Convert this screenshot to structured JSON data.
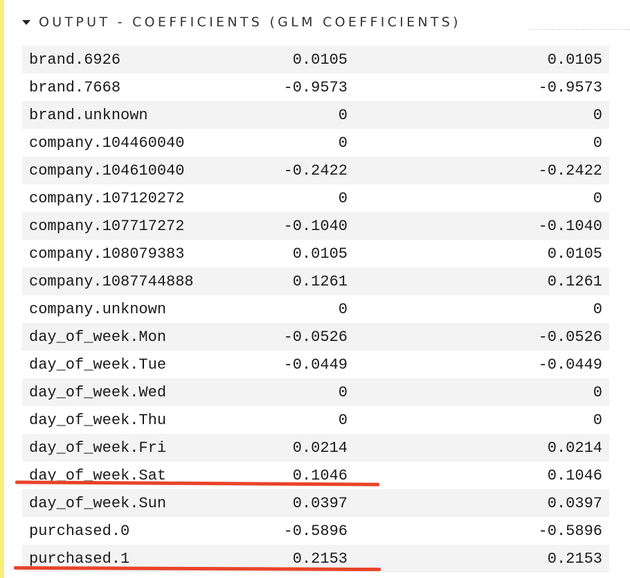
{
  "section": {
    "title": "OUTPUT - COEFFICIENTS (GLM COEFFICIENTS)",
    "caret_icon": "caret-down-icon"
  },
  "coefficients": [
    {
      "name": "brand.6926",
      "coefficient": "0.0105",
      "std_coefficient": "0.0105"
    },
    {
      "name": "brand.7668",
      "coefficient": "-0.9573",
      "std_coefficient": "-0.9573"
    },
    {
      "name": "brand.unknown",
      "coefficient": "0",
      "std_coefficient": "0"
    },
    {
      "name": "company.104460040",
      "coefficient": "0",
      "std_coefficient": "0"
    },
    {
      "name": "company.104610040",
      "coefficient": "-0.2422",
      "std_coefficient": "-0.2422"
    },
    {
      "name": "company.107120272",
      "coefficient": "0",
      "std_coefficient": "0"
    },
    {
      "name": "company.107717272",
      "coefficient": "-0.1040",
      "std_coefficient": "-0.1040"
    },
    {
      "name": "company.108079383",
      "coefficient": "0.0105",
      "std_coefficient": "0.0105"
    },
    {
      "name": "company.1087744888",
      "coefficient": "0.1261",
      "std_coefficient": "0.1261"
    },
    {
      "name": "company.unknown",
      "coefficient": "0",
      "std_coefficient": "0"
    },
    {
      "name": "day_of_week.Mon",
      "coefficient": "-0.0526",
      "std_coefficient": "-0.0526"
    },
    {
      "name": "day_of_week.Tue",
      "coefficient": "-0.0449",
      "std_coefficient": "-0.0449"
    },
    {
      "name": "day_of_week.Wed",
      "coefficient": "0",
      "std_coefficient": "0"
    },
    {
      "name": "day_of_week.Thu",
      "coefficient": "0",
      "std_coefficient": "0"
    },
    {
      "name": "day_of_week.Fri",
      "coefficient": "0.0214",
      "std_coefficient": "0.0214"
    },
    {
      "name": "day_of_week.Sat",
      "coefficient": "0.1046",
      "std_coefficient": "0.1046"
    },
    {
      "name": "day_of_week.Sun",
      "coefficient": "0.0397",
      "std_coefficient": "0.0397"
    },
    {
      "name": "purchased.0",
      "coefficient": "-0.5896",
      "std_coefficient": "-0.5896"
    },
    {
      "name": "purchased.1",
      "coefficient": "0.2153",
      "std_coefficient": "0.2153"
    }
  ],
  "annotation_color": "#e8442a",
  "accent_bar_color": "#f7ee7a"
}
